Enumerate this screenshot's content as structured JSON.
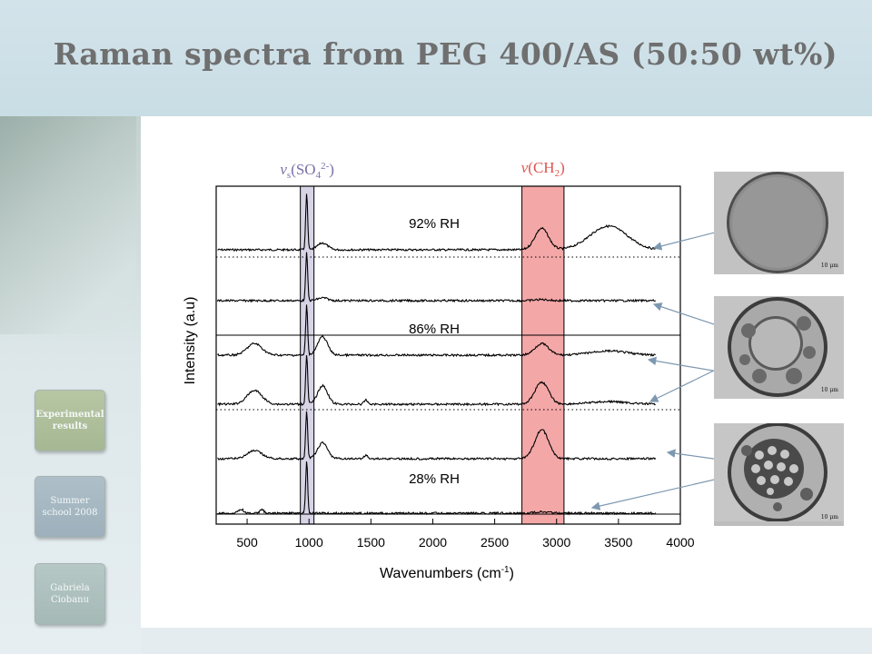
{
  "slide": {
    "title": "Raman spectra from PEG 400/AS (50:50 wt%)"
  },
  "sidebar": {
    "buttons": [
      {
        "label": "Experimental results"
      },
      {
        "label": "Summer school 2008"
      },
      {
        "label": "Gabriela Ciobanu"
      }
    ]
  },
  "chart_data": {
    "type": "line",
    "xlabel": "Wavenumbers (cm-1)",
    "ylabel": "Intensity (a.u)",
    "xlim": [
      250,
      4000
    ],
    "xticks": [
      500,
      1000,
      1500,
      2000,
      2500,
      3000,
      3500,
      4000
    ],
    "band_labels": [
      "νs(SO42-)",
      "ν(CH2)"
    ],
    "bands": [
      {
        "label": "νs(SO42-)",
        "range": [
          930,
          1040
        ],
        "color": "#d8d4e6"
      },
      {
        "label": "ν(CH2)",
        "range": [
          2720,
          3060
        ],
        "color": "#f4a7a7"
      }
    ],
    "series_labels": [
      "92% RH",
      "86% RH",
      "28% RH"
    ],
    "series": [
      {
        "name": "92% RH",
        "peaks": [
          [
            981,
            1.0
          ],
          [
            1110,
            0.12
          ],
          [
            2880,
            0.38
          ],
          [
            3420,
            0.42
          ]
        ]
      },
      {
        "name": "",
        "peaks": [
          [
            981,
            0.85
          ],
          [
            1110,
            0.05
          ],
          [
            2880,
            0.02
          ]
        ]
      },
      {
        "name": "86% RH",
        "peaks": [
          [
            560,
            0.22
          ],
          [
            981,
            0.95
          ],
          [
            1110,
            0.35
          ],
          [
            2880,
            0.22
          ],
          [
            3420,
            0.08
          ]
        ]
      },
      {
        "name": "",
        "peaks": [
          [
            560,
            0.26
          ],
          [
            981,
            0.95
          ],
          [
            1110,
            0.35
          ],
          [
            1460,
            0.08
          ],
          [
            2880,
            0.42
          ],
          [
            3420,
            0.05
          ]
        ]
      },
      {
        "name": "",
        "peaks": [
          [
            560,
            0.15
          ],
          [
            981,
            0.9
          ],
          [
            1110,
            0.3
          ],
          [
            1460,
            0.07
          ],
          [
            2880,
            0.55
          ]
        ]
      },
      {
        "name": "28% RH",
        "peaks": [
          [
            450,
            0.08
          ],
          [
            620,
            0.07
          ],
          [
            981,
            1.0
          ],
          [
            2880,
            0.03
          ]
        ]
      }
    ],
    "grid": false,
    "legend": "none"
  },
  "micrographs": [
    {
      "scale_label": "10 μm",
      "state": "homogeneous droplet"
    },
    {
      "scale_label": "10 μm",
      "state": "phase-separated droplet"
    },
    {
      "scale_label": "10 μm",
      "state": "crystallized droplet"
    }
  ],
  "colors": {
    "header": "#cfe1e8",
    "title": "#6f6f6f",
    "sulfate_band": "#d8d4e6",
    "ch2_band": "#f4a7a7",
    "arrow": "#7d98b0"
  }
}
